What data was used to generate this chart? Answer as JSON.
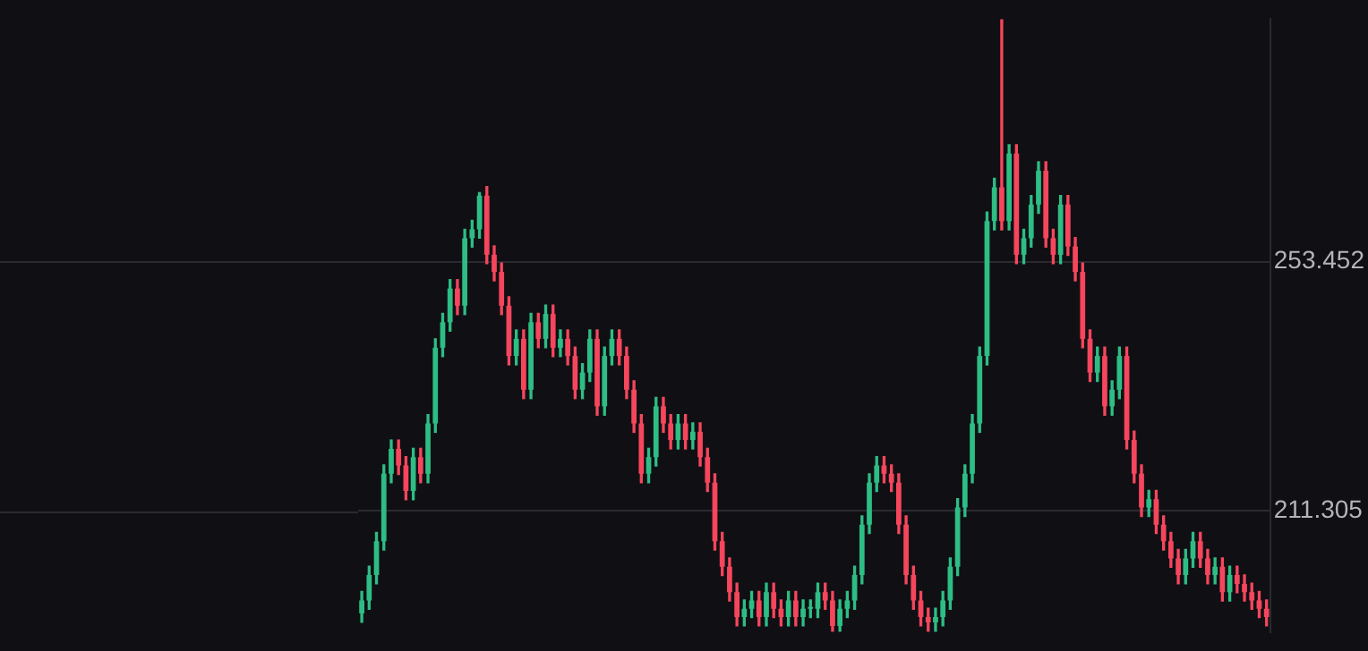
{
  "chart_data": {
    "type": "candlestick",
    "categories": [
      null,
      null,
      null,
      null,
      null,
      null,
      null,
      null,
      null,
      null,
      null,
      null,
      null,
      null,
      null,
      null,
      null,
      null,
      null,
      null,
      null,
      null,
      null,
      null,
      null,
      null,
      null,
      null,
      null,
      null,
      null,
      null,
      null,
      null,
      null,
      null,
      null,
      null,
      null,
      null,
      null,
      null,
      null,
      null,
      null,
      null,
      null,
      null,
      null,
      null,
      null,
      null,
      null,
      null,
      null,
      null,
      null,
      null,
      null,
      null,
      null,
      null,
      null,
      null,
      null,
      null,
      null,
      null,
      null,
      null,
      null,
      null,
      null,
      null,
      null,
      null,
      null,
      null,
      null,
      null,
      null,
      null,
      null,
      null,
      null,
      null,
      null,
      null,
      null,
      null,
      null,
      null,
      null,
      null,
      null,
      null,
      null,
      null,
      null,
      null,
      null,
      null,
      null,
      null,
      null,
      null,
      null,
      null,
      null,
      null,
      null,
      null,
      null,
      null,
      null,
      null,
      null,
      null,
      null,
      null,
      null,
      null,
      null,
      null
    ],
    "ohlc": [
      [
        194.0,
        197.7,
        192.5,
        196.2
      ],
      [
        196.2,
        202.0,
        194.7,
        200.5
      ],
      [
        200.5,
        207.7,
        199.0,
        206.2
      ],
      [
        206.2,
        219.1,
        204.7,
        217.6
      ],
      [
        217.6,
        223.3,
        216.1,
        221.8
      ],
      [
        221.8,
        223.3,
        217.5,
        219.0
      ],
      [
        219.0,
        220.5,
        213.2,
        214.7
      ],
      [
        214.7,
        221.9,
        213.2,
        220.4
      ],
      [
        220.4,
        221.9,
        216.1,
        217.6
      ],
      [
        217.6,
        227.6,
        216.1,
        226.1
      ],
      [
        226.1,
        240.4,
        224.6,
        238.9
      ],
      [
        238.9,
        244.7,
        237.4,
        243.2
      ],
      [
        243.2,
        250.4,
        241.7,
        248.9
      ],
      [
        248.9,
        250.4,
        244.5,
        246.0
      ],
      [
        246.0,
        258.9,
        244.5,
        257.4
      ],
      [
        257.4,
        260.4,
        255.9,
        258.9
      ],
      [
        258.9,
        265.1,
        257.4,
        264.6
      ],
      [
        264.6,
        266.1,
        253.1,
        254.6
      ],
      [
        254.6,
        256.1,
        250.2,
        251.7
      ],
      [
        251.7,
        253.2,
        244.5,
        246.0
      ],
      [
        246.0,
        247.5,
        236.0,
        237.5
      ],
      [
        237.5,
        241.9,
        236.0,
        240.4
      ],
      [
        240.4,
        241.9,
        230.3,
        231.8
      ],
      [
        231.8,
        244.7,
        230.3,
        243.2
      ],
      [
        243.2,
        244.7,
        238.9,
        240.4
      ],
      [
        240.4,
        246.1,
        238.9,
        244.6
      ],
      [
        244.6,
        246.1,
        237.4,
        238.9
      ],
      [
        238.9,
        241.9,
        237.4,
        240.4
      ],
      [
        240.4,
        241.9,
        236.0,
        237.5
      ],
      [
        237.5,
        239.0,
        230.3,
        231.8
      ],
      [
        231.8,
        236.2,
        230.3,
        234.7
      ],
      [
        234.7,
        241.9,
        233.2,
        240.4
      ],
      [
        240.4,
        241.9,
        227.5,
        229.0
      ],
      [
        229.0,
        239.0,
        227.5,
        237.5
      ],
      [
        237.5,
        241.9,
        236.0,
        240.4
      ],
      [
        240.4,
        241.9,
        236.0,
        237.5
      ],
      [
        237.5,
        239.0,
        230.3,
        231.8
      ],
      [
        231.8,
        233.3,
        224.6,
        226.1
      ],
      [
        226.1,
        227.6,
        216.1,
        217.6
      ],
      [
        217.6,
        221.9,
        216.1,
        220.4
      ],
      [
        220.4,
        230.5,
        218.9,
        229.0
      ],
      [
        229.0,
        230.5,
        224.6,
        226.1
      ],
      [
        226.1,
        227.6,
        221.8,
        223.3
      ],
      [
        223.3,
        227.6,
        221.8,
        226.1
      ],
      [
        226.1,
        227.6,
        221.8,
        223.3
      ],
      [
        223.3,
        226.2,
        221.8,
        224.7
      ],
      [
        224.7,
        226.2,
        218.9,
        220.4
      ],
      [
        220.4,
        221.9,
        214.6,
        216.1
      ],
      [
        216.1,
        217.6,
        204.7,
        206.2
      ],
      [
        206.2,
        207.7,
        200.4,
        201.9
      ],
      [
        201.9,
        203.4,
        196.1,
        197.6
      ],
      [
        197.6,
        199.1,
        191.9,
        193.4
      ],
      [
        193.4,
        196.3,
        191.9,
        194.8
      ],
      [
        194.8,
        197.7,
        193.3,
        196.2
      ],
      [
        196.2,
        197.7,
        191.9,
        193.4
      ],
      [
        193.4,
        199.1,
        191.9,
        197.6
      ],
      [
        197.6,
        199.1,
        193.3,
        194.8
      ],
      [
        194.8,
        196.3,
        191.9,
        193.4
      ],
      [
        193.4,
        197.7,
        191.9,
        196.2
      ],
      [
        196.2,
        197.7,
        191.9,
        193.4
      ],
      [
        193.4,
        196.3,
        191.9,
        194.8
      ],
      [
        194.8,
        196.3,
        193.3,
        194.8
      ],
      [
        194.8,
        199.1,
        193.3,
        197.6
      ],
      [
        197.6,
        199.1,
        194.7,
        196.2
      ],
      [
        196.2,
        197.7,
        191.0,
        191.9
      ],
      [
        191.9,
        196.3,
        191.0,
        194.8
      ],
      [
        194.8,
        197.7,
        193.3,
        196.2
      ],
      [
        196.2,
        202.0,
        194.7,
        200.5
      ],
      [
        200.5,
        210.5,
        199.0,
        209.0
      ],
      [
        209.0,
        217.6,
        207.5,
        216.1
      ],
      [
        216.1,
        220.5,
        214.6,
        219.0
      ],
      [
        219.0,
        220.5,
        216.1,
        217.6
      ],
      [
        217.6,
        219.1,
        214.6,
        216.1
      ],
      [
        216.1,
        217.6,
        207.5,
        209.0
      ],
      [
        209.0,
        210.5,
        199.0,
        200.5
      ],
      [
        200.5,
        202.0,
        194.7,
        196.2
      ],
      [
        196.2,
        197.7,
        191.9,
        193.4
      ],
      [
        193.4,
        194.9,
        191.0,
        192.5
      ],
      [
        192.5,
        194.9,
        191.0,
        193.4
      ],
      [
        193.4,
        197.7,
        191.9,
        196.2
      ],
      [
        196.2,
        203.4,
        194.7,
        201.9
      ],
      [
        201.9,
        213.4,
        200.4,
        211.9
      ],
      [
        211.9,
        219.1,
        210.4,
        217.6
      ],
      [
        217.6,
        227.6,
        216.1,
        226.1
      ],
      [
        226.1,
        239.0,
        224.6,
        237.5
      ],
      [
        237.5,
        261.8,
        236.0,
        260.3
      ],
      [
        260.3,
        267.5,
        258.8,
        266.0
      ],
      [
        266.0,
        294.3,
        258.8,
        260.3
      ],
      [
        260.3,
        273.2,
        258.8,
        271.7
      ],
      [
        271.7,
        273.2,
        253.1,
        254.6
      ],
      [
        254.6,
        258.9,
        253.1,
        257.4
      ],
      [
        257.4,
        264.6,
        255.9,
        263.1
      ],
      [
        263.1,
        270.3,
        261.6,
        268.8
      ],
      [
        268.8,
        270.3,
        255.9,
        257.4
      ],
      [
        257.4,
        258.9,
        253.1,
        254.6
      ],
      [
        254.6,
        264.6,
        253.1,
        263.1
      ],
      [
        263.1,
        264.6,
        254.5,
        256.0
      ],
      [
        256.0,
        257.5,
        250.2,
        251.7
      ],
      [
        251.7,
        253.2,
        238.9,
        240.4
      ],
      [
        240.4,
        241.9,
        233.2,
        234.7
      ],
      [
        234.7,
        239.0,
        233.2,
        237.5
      ],
      [
        237.5,
        239.0,
        227.5,
        229.0
      ],
      [
        229.0,
        233.3,
        227.5,
        231.8
      ],
      [
        231.8,
        239.0,
        230.3,
        237.5
      ],
      [
        237.5,
        239.0,
        221.8,
        223.3
      ],
      [
        223.3,
        224.8,
        216.1,
        217.6
      ],
      [
        217.6,
        219.1,
        210.4,
        211.9
      ],
      [
        211.9,
        214.8,
        210.4,
        213.3
      ],
      [
        213.3,
        214.8,
        207.5,
        209.0
      ],
      [
        209.0,
        210.5,
        204.7,
        206.2
      ],
      [
        206.2,
        207.7,
        201.8,
        203.3
      ],
      [
        203.3,
        204.8,
        199.0,
        200.5
      ],
      [
        200.5,
        204.8,
        199.0,
        203.3
      ],
      [
        203.3,
        207.7,
        201.8,
        206.2
      ],
      [
        206.2,
        207.7,
        201.8,
        203.3
      ],
      [
        203.3,
        204.8,
        199.0,
        200.5
      ],
      [
        200.5,
        203.4,
        199.0,
        201.9
      ],
      [
        201.9,
        203.4,
        196.1,
        197.6
      ],
      [
        197.6,
        202.0,
        196.1,
        200.5
      ],
      [
        200.5,
        202.0,
        197.5,
        199.0
      ],
      [
        199.0,
        200.5,
        196.1,
        197.6
      ],
      [
        197.6,
        199.1,
        194.7,
        196.2
      ],
      [
        196.2,
        197.7,
        193.3,
        194.8
      ],
      [
        194.8,
        196.3,
        191.9,
        193.4
      ]
    ],
    "ylim": [
      190.8,
      294.5
    ],
    "yticks": [
      211.305,
      253.452
    ],
    "grid": "y",
    "tick_labels": "y",
    "legend": false
  }
}
